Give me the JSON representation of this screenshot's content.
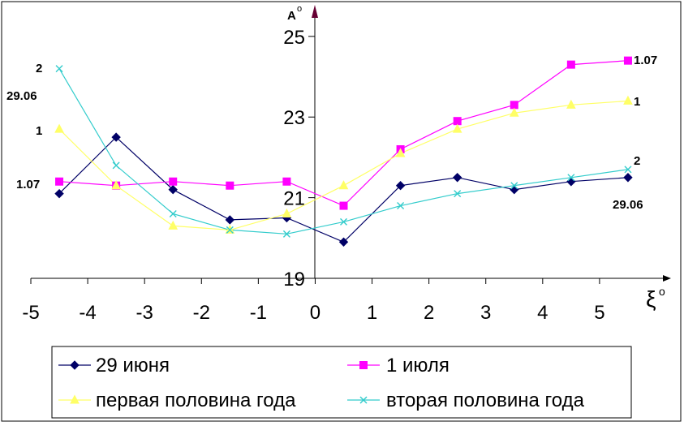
{
  "chart_data": {
    "type": "line",
    "x": [
      -4.5,
      -3.5,
      -2.5,
      -1.5,
      -0.5,
      0.5,
      1.5,
      2.5,
      3.5,
      4.5,
      5.5
    ],
    "series": [
      {
        "name": "29 июня",
        "color": "#000066",
        "marker": "diamond",
        "values": [
          21.1,
          22.5,
          21.2,
          20.45,
          20.5,
          19.9,
          21.3,
          21.5,
          21.2,
          21.4,
          21.5
        ]
      },
      {
        "name": "1 июля",
        "color": "#FF00FF",
        "marker": "square",
        "values": [
          21.4,
          21.3,
          21.4,
          21.3,
          21.4,
          20.8,
          22.2,
          22.9,
          23.3,
          24.3,
          24.4
        ]
      },
      {
        "name": "первая половина года",
        "color": "#FFFF66",
        "marker": "triangle",
        "values": [
          22.7,
          21.3,
          20.3,
          20.2,
          20.6,
          21.3,
          22.1,
          22.7,
          23.1,
          23.3,
          23.4
        ]
      },
      {
        "name": "вторая половина года",
        "color": "#33CCCC",
        "marker": "x",
        "values": [
          24.2,
          21.8,
          20.6,
          20.2,
          20.1,
          20.4,
          20.8,
          21.1,
          21.3,
          21.5,
          21.7
        ]
      }
    ],
    "xlim": [
      -5,
      6
    ],
    "ylim": [
      19,
      25.5
    ],
    "x_ticks": [
      "-5",
      "-4",
      "-3",
      "-2",
      "-1",
      "0",
      "1",
      "2",
      "3",
      "4",
      "5"
    ],
    "y_ticks": [
      "25",
      "23",
      "21",
      "19"
    ],
    "y_axis_label": "A",
    "y_axis_label_sup": "o",
    "x_axis_label": "ξ",
    "x_axis_label_sup": "o",
    "annotations_left": [
      "2",
      "29.06",
      "1",
      "1.07"
    ],
    "annotations_right": [
      "1.07",
      "1",
      "2",
      "29.06"
    ],
    "legend_position": "bottom"
  }
}
